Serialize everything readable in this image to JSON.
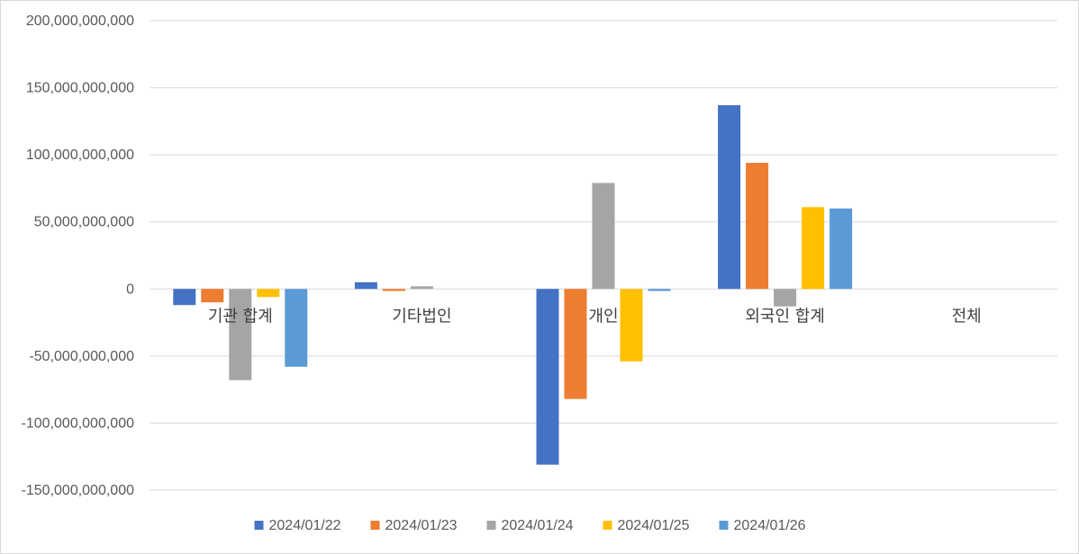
{
  "chart_data": {
    "type": "bar",
    "categories": [
      "기관 합계",
      "기타법인",
      "개인",
      "외국인 합계",
      "전체"
    ],
    "series": [
      {
        "name": "2024/01/22",
        "color": "#4472C4",
        "values": [
          -12000000000,
          5000000000,
          -131000000000,
          137000000000,
          0
        ]
      },
      {
        "name": "2024/01/23",
        "color": "#ED7D31",
        "values": [
          -10000000000,
          -1500000000,
          -82000000000,
          94000000000,
          0
        ]
      },
      {
        "name": "2024/01/24",
        "color": "#A5A5A5",
        "values": [
          -68000000000,
          2000000000,
          79000000000,
          -13000000000,
          0
        ]
      },
      {
        "name": "2024/01/25",
        "color": "#FFC000",
        "values": [
          -6000000000,
          0,
          -54000000000,
          61000000000,
          0
        ]
      },
      {
        "name": "2024/01/26",
        "color": "#5B9BD5",
        "values": [
          -58000000000,
          0,
          -1500000000,
          60000000000,
          0
        ]
      }
    ],
    "yticks": [
      "200,000,000,000",
      "150,000,000,000",
      "100,000,000,000",
      "50,000,000,000",
      "0",
      "-50,000,000,000",
      "-100,000,000,000",
      "-150,000,000,000"
    ],
    "ylim": [
      -150000000000,
      200000000000
    ],
    "grid": true,
    "legend_position": "bottom"
  }
}
